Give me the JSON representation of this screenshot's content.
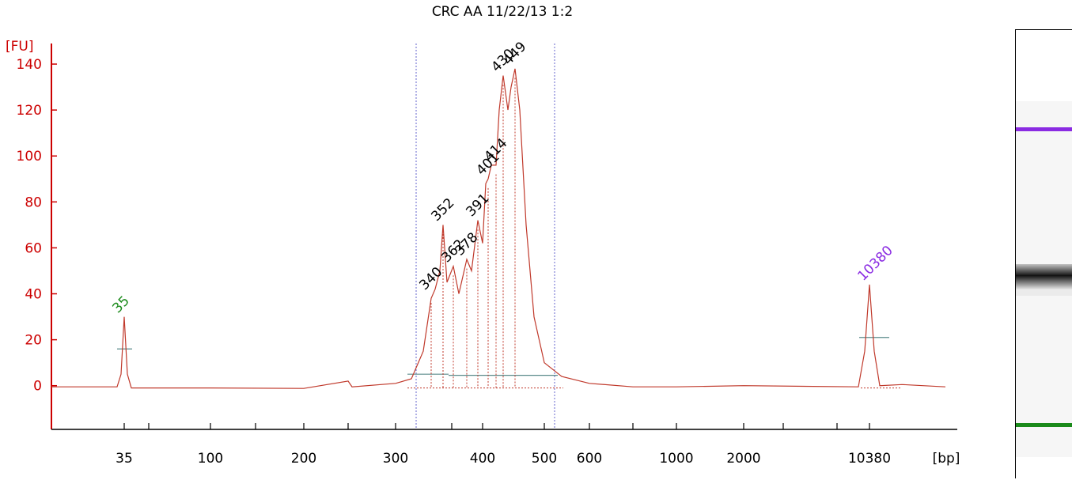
{
  "chart_data": {
    "type": "line",
    "title": "CRC AA 11/22/13 1:2",
    "ylabel": "[FU]",
    "xlabel": "[bp]",
    "ylim": [
      -18,
      150
    ],
    "yticks": [
      0,
      20,
      40,
      60,
      80,
      100,
      120,
      140
    ],
    "xticks": [
      "35",
      "100",
      "200",
      "300",
      "400",
      "500",
      "600",
      "1000",
      "2000",
      "10380"
    ],
    "series": [
      {
        "points": [
          [
            "x<35",
            -0.5
          ],
          [
            "35",
            30
          ],
          [
            "35-100",
            -1
          ],
          [
            "100",
            -1
          ],
          [
            "200",
            -1
          ],
          [
            "300",
            1
          ],
          [
            "340",
            40
          ],
          [
            "352",
            70
          ],
          [
            "362",
            52
          ],
          [
            "378",
            55
          ],
          [
            "391",
            72
          ],
          [
            "401",
            90
          ],
          [
            "414",
            96
          ],
          [
            "430",
            135
          ],
          [
            "449",
            138
          ],
          [
            "500",
            10
          ],
          [
            "600",
            0
          ],
          [
            "1000",
            -0.5
          ],
          [
            "2000",
            0
          ],
          [
            "10380",
            44
          ],
          [
            ">10380",
            -0.5
          ]
        ]
      }
    ],
    "peak_labels": [
      {
        "label": "35",
        "fu": 30,
        "color": "#1a8a1a"
      },
      {
        "label": "340",
        "fu": 40,
        "color": "#000000"
      },
      {
        "label": "352",
        "fu": 70,
        "color": "#000000"
      },
      {
        "label": "362",
        "fu": 52,
        "color": "#000000"
      },
      {
        "label": "378",
        "fu": 55,
        "color": "#000000"
      },
      {
        "label": "391",
        "fu": 72,
        "color": "#000000"
      },
      {
        "label": "401",
        "fu": 90,
        "color": "#000000"
      },
      {
        "label": "414",
        "fu": 96,
        "color": "#000000"
      },
      {
        "label": "430",
        "fu": 135,
        "color": "#000000"
      },
      {
        "label": "449",
        "fu": 138,
        "color": "#000000"
      },
      {
        "label": "10380",
        "fu": 44,
        "color": "#8a2be2"
      }
    ],
    "colors": {
      "axis": "#cc0000",
      "trace": "#c0392b",
      "marker_lower": "#1a8a1a",
      "marker_upper": "#8a2be2",
      "region_line": "#6666cc",
      "baseline": "#5a8a8a"
    }
  },
  "gel": {
    "bands": [
      {
        "name": "upper-marker",
        "color": "#8a2be2"
      },
      {
        "name": "sample-smear",
        "color": "#000000"
      },
      {
        "name": "lower-marker",
        "color": "#1a8a1a"
      }
    ]
  }
}
